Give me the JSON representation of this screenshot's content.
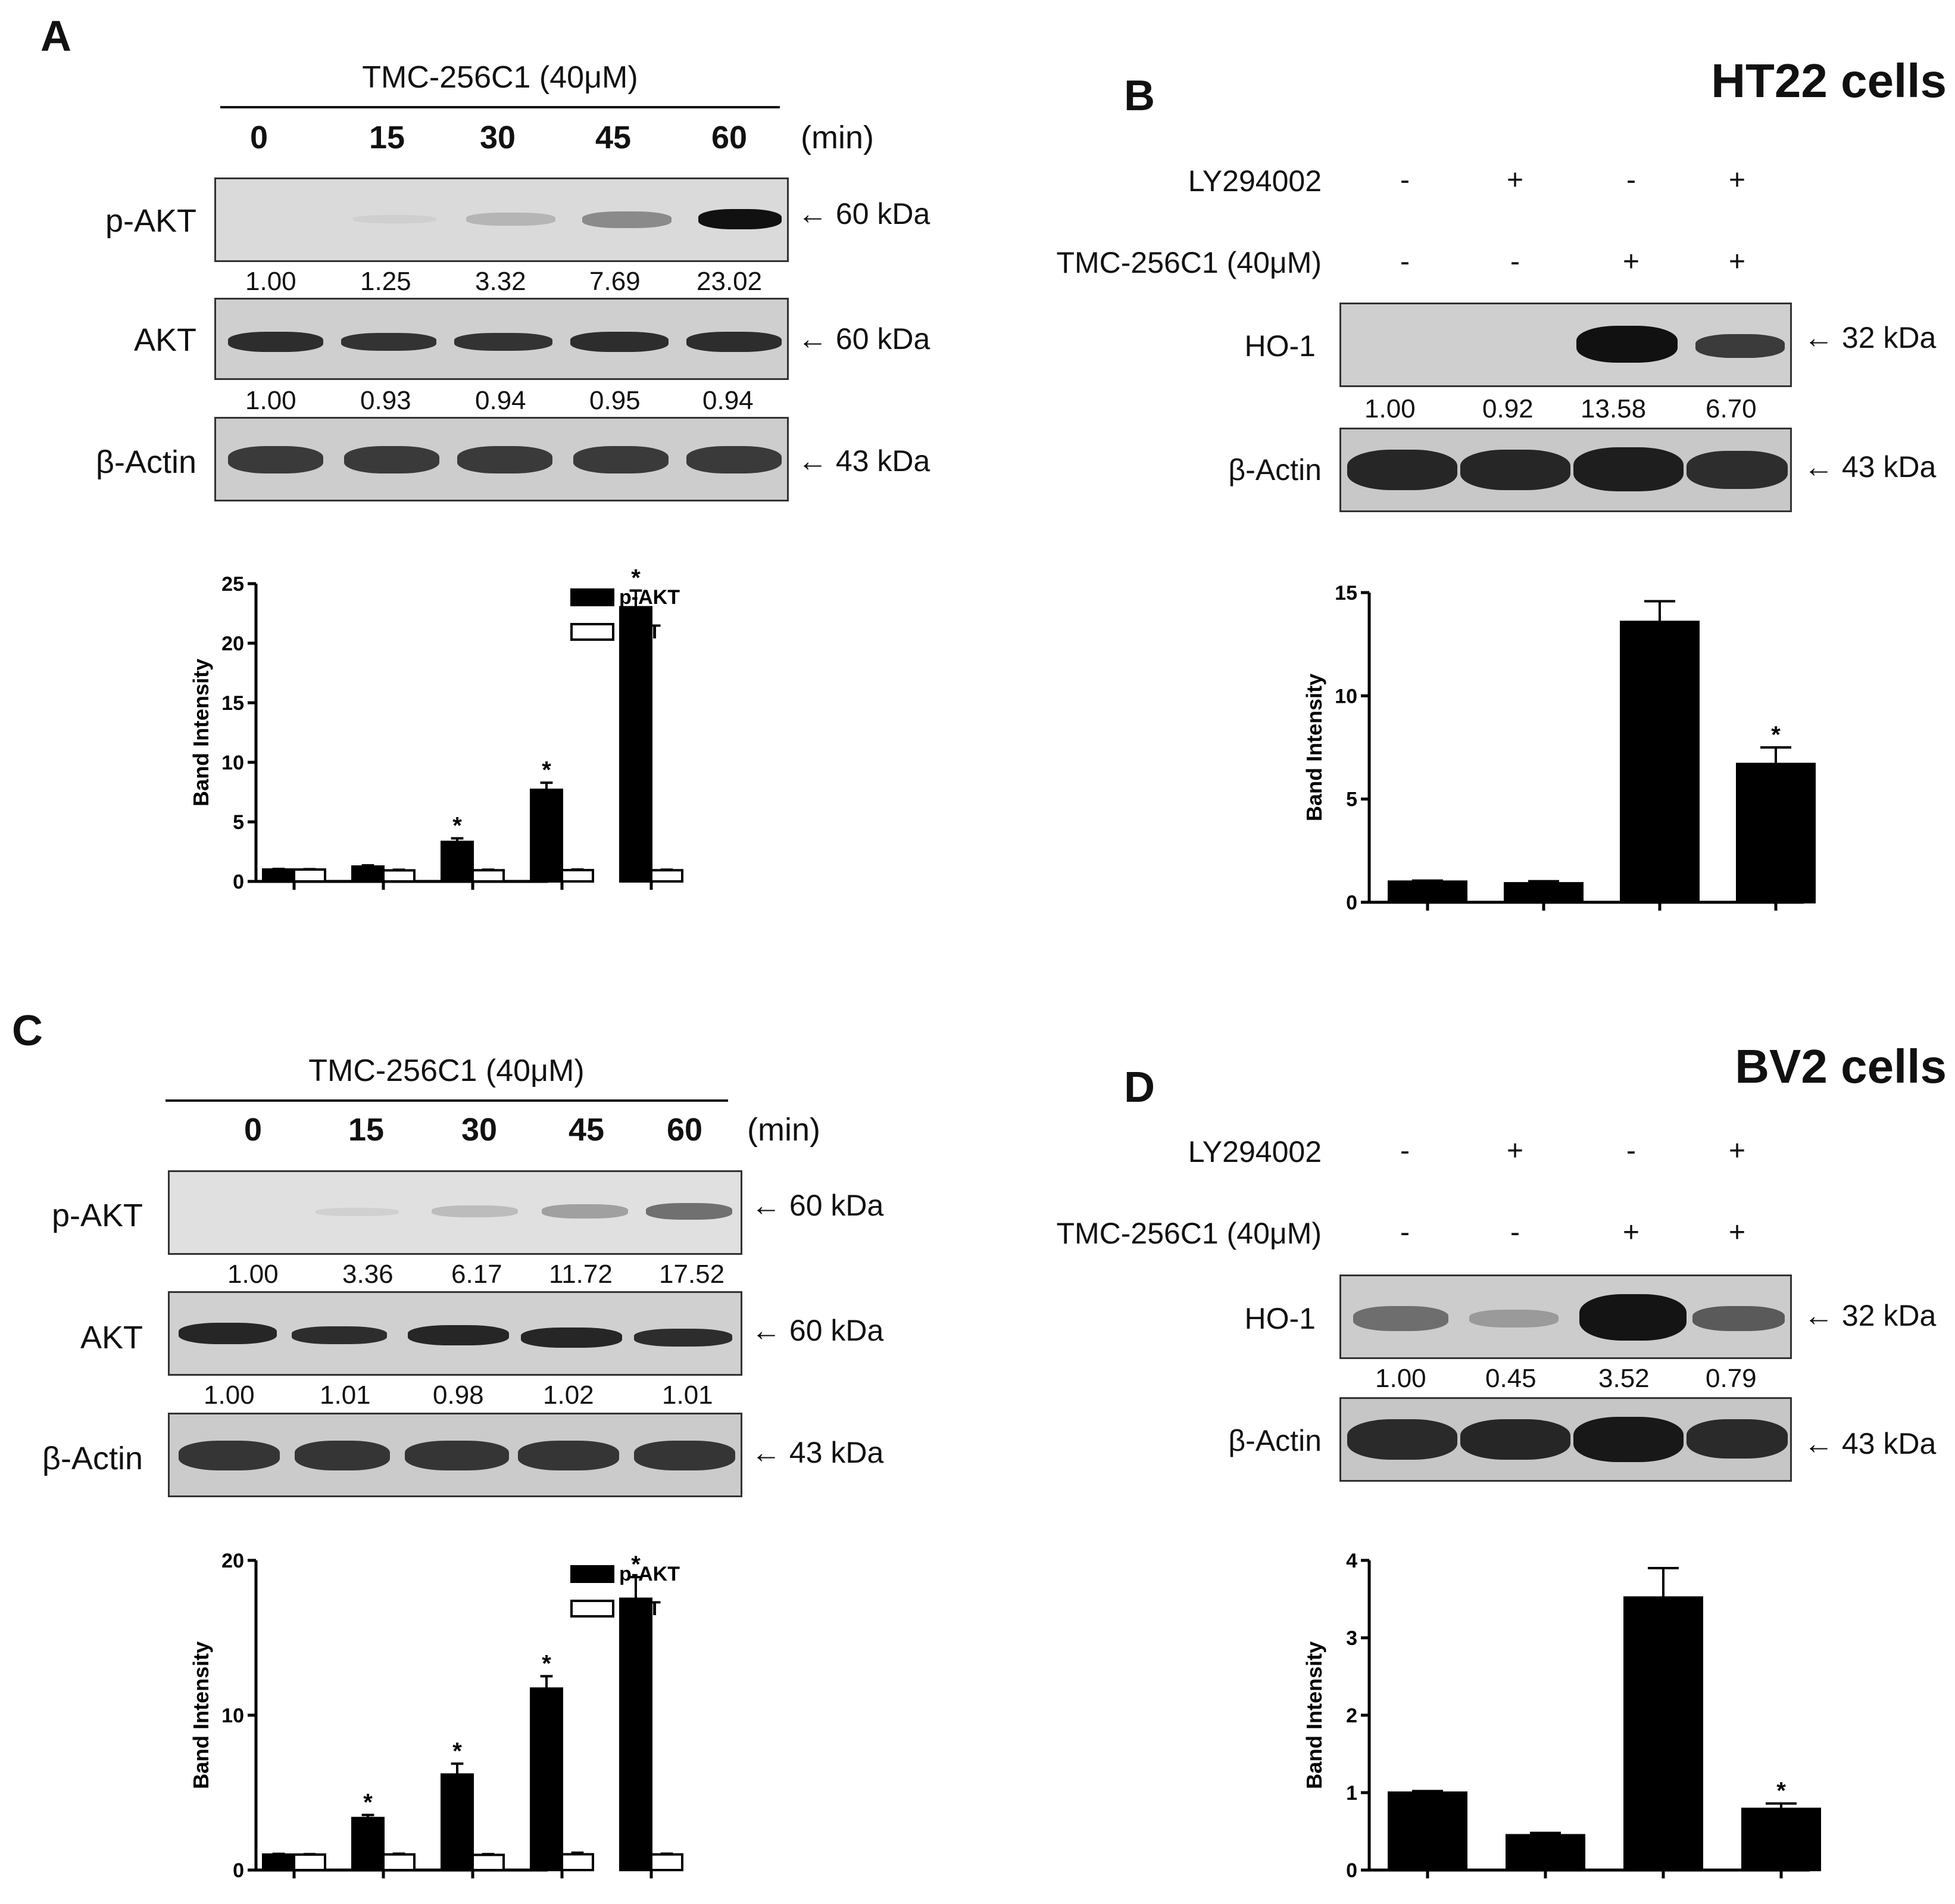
{
  "panelA": {
    "letter": "A",
    "treatment": "TMC-256C1 (40μM)",
    "times": [
      "0",
      "15",
      "30",
      "45",
      "60"
    ],
    "unit": "(min)",
    "rows": {
      "pakt": {
        "label": "p-AKT",
        "kda": "← 60 kDa",
        "quant": [
          "1.00",
          "1.25",
          "3.32",
          "7.69",
          "23.02"
        ]
      },
      "akt": {
        "label": "AKT",
        "kda": "← 60 kDa",
        "quant": [
          "1.00",
          "0.93",
          "0.94",
          "0.95",
          "0.94"
        ]
      },
      "actin": {
        "label": "β-Actin",
        "kda": "← 43 kDa"
      }
    }
  },
  "panelB": {
    "letter": "B",
    "cells": "HT22 cells",
    "cond1": {
      "label": "LY294002",
      "signs": [
        "-",
        "+",
        "-",
        "+"
      ]
    },
    "cond2": {
      "label": "TMC-256C1 (40μM)",
      "signs": [
        "-",
        "-",
        "+",
        "+"
      ]
    },
    "rows": {
      "ho1": {
        "label": "HO-1",
        "kda": "← 32 kDa",
        "quant": [
          "1.00",
          "0.92",
          "13.58",
          "6.70"
        ]
      },
      "actin": {
        "label": "β-Actin",
        "kda": "← 43 kDa"
      }
    }
  },
  "panelC": {
    "letter": "C",
    "treatment": "TMC-256C1 (40μM)",
    "times": [
      "0",
      "15",
      "30",
      "45",
      "60"
    ],
    "unit": "(min)",
    "rows": {
      "pakt": {
        "label": "p-AKT",
        "kda": "← 60 kDa",
        "quant": [
          "1.00",
          "3.36",
          "6.17",
          "11.72",
          "17.52"
        ]
      },
      "akt": {
        "label": "AKT",
        "kda": "← 60 kDa",
        "quant": [
          "1.00",
          "1.01",
          "0.98",
          "1.02",
          "1.01"
        ]
      },
      "actin": {
        "label": "β-Actin",
        "kda": "← 43 kDa"
      }
    }
  },
  "panelD": {
    "letter": "D",
    "cells": "BV2 cells",
    "cond1": {
      "label": "LY294002",
      "signs": [
        "-",
        "+",
        "-",
        "+"
      ]
    },
    "cond2": {
      "label": "TMC-256C1 (40μM)",
      "signs": [
        "-",
        "-",
        "+",
        "+"
      ]
    },
    "rows": {
      "ho1": {
        "label": "HO-1",
        "kda": "← 32 kDa",
        "quant": [
          "1.00",
          "0.45",
          "3.52",
          "0.79"
        ]
      },
      "actin": {
        "label": "β-Actin",
        "kda": "← 43 kDa"
      }
    }
  },
  "chart_data": [
    {
      "id": "chartA",
      "type": "bar",
      "ylabel": "Band Intensity",
      "ylim": [
        0,
        25
      ],
      "yticks": [
        0,
        5,
        10,
        15,
        20,
        25
      ],
      "groups": 5,
      "series": [
        {
          "name": "p-AKT",
          "color": "#000000",
          "values": [
            1.0,
            1.25,
            3.32,
            7.69,
            23.02
          ],
          "errors": [
            0.05,
            0.1,
            0.3,
            0.6,
            1.4
          ],
          "stars": [
            false,
            false,
            true,
            true,
            true
          ]
        },
        {
          "name": "AKT",
          "color": "#ffffff",
          "values": [
            1.0,
            0.93,
            0.94,
            0.95,
            0.94
          ],
          "errors": [
            0.03,
            0.05,
            0.05,
            0.05,
            0.05
          ],
          "stars": [
            false,
            false,
            false,
            false,
            false
          ]
        }
      ],
      "star_symbol": "*"
    },
    {
      "id": "chartB",
      "type": "bar",
      "ylabel": "Band Intensity",
      "ylim": [
        0,
        15
      ],
      "yticks": [
        0,
        5,
        10,
        15
      ],
      "groups": 4,
      "series": [
        {
          "name": "HO-1",
          "color": "#000000",
          "values": [
            1.0,
            0.92,
            13.58,
            6.7
          ],
          "errors": [
            0.05,
            0.1,
            1.0,
            0.8
          ],
          "stars": [
            false,
            false,
            false,
            true
          ]
        }
      ],
      "star_symbol": "*"
    },
    {
      "id": "chartC",
      "type": "bar",
      "ylabel": "Band Intensity",
      "ylim": [
        0,
        20
      ],
      "yticks": [
        0,
        10,
        20
      ],
      "groups": 5,
      "series": [
        {
          "name": "p-AKT",
          "color": "#000000",
          "values": [
            1.0,
            3.36,
            6.17,
            11.72,
            17.52
          ],
          "errors": [
            0.05,
            0.2,
            0.7,
            0.8,
            1.4
          ],
          "stars": [
            false,
            true,
            true,
            true,
            true
          ]
        },
        {
          "name": "AKT",
          "color": "#ffffff",
          "values": [
            1.0,
            1.01,
            0.98,
            1.02,
            1.01
          ],
          "errors": [
            0.03,
            0.05,
            0.05,
            0.1,
            0.05
          ],
          "stars": [
            false,
            false,
            false,
            false,
            false
          ]
        }
      ],
      "star_symbol": "*"
    },
    {
      "id": "chartD",
      "type": "bar",
      "ylabel": "Band Intensity",
      "ylim": [
        0,
        4
      ],
      "yticks": [
        0,
        1,
        2,
        3,
        4
      ],
      "groups": 4,
      "series": [
        {
          "name": "HO-1",
          "color": "#000000",
          "values": [
            1.0,
            0.45,
            3.52,
            0.79
          ],
          "errors": [
            0.02,
            0.03,
            0.38,
            0.07
          ],
          "stars": [
            false,
            false,
            false,
            true
          ]
        }
      ],
      "star_symbol": "*"
    }
  ]
}
